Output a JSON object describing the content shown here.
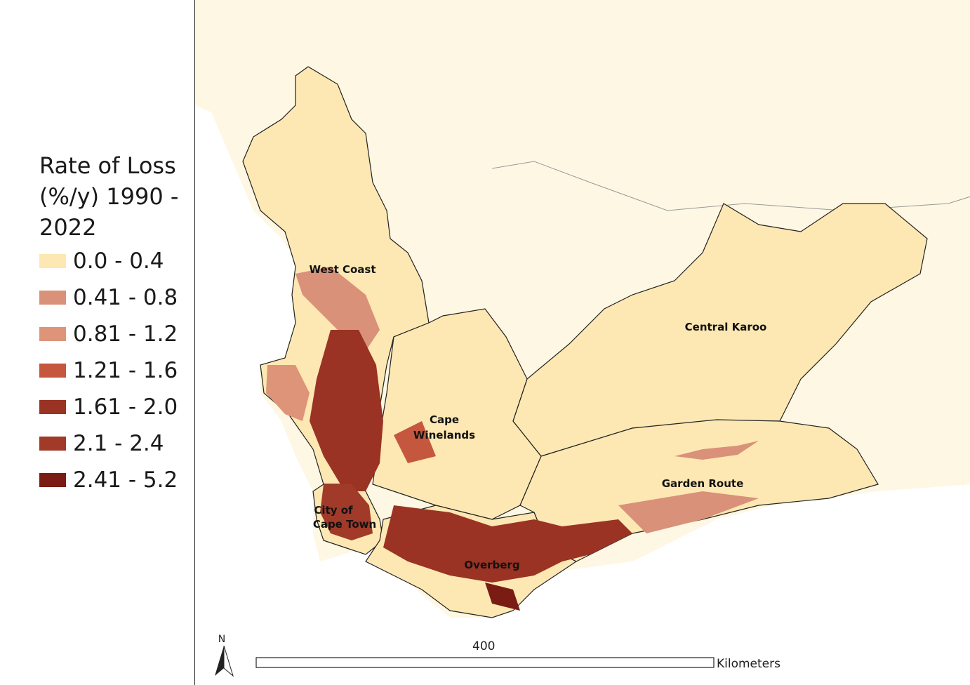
{
  "legend": {
    "title": "Rate of Loss\n(%/y) 1990 -\n2022",
    "items": [
      {
        "label": "0.0 - 0.4",
        "color": "#fde7b2"
      },
      {
        "label": "0.41 - 0.8",
        "color": "#d9917a"
      },
      {
        "label": "0.81 - 1.2",
        "color": "#dd9478"
      },
      {
        "label": "1.21 - 1.6",
        "color": "#c4573d"
      },
      {
        "label": "1.61 - 2.0",
        "color": "#9b3324"
      },
      {
        "label": "2.1 - 2.4",
        "color": "#a13a28"
      },
      {
        "label": "2.41 - 5.2",
        "color": "#7a1c14"
      }
    ]
  },
  "regions": [
    {
      "name": "West Coast"
    },
    {
      "name": "Central Karoo"
    },
    {
      "name": "Cape"
    },
    {
      "name": "Winelands"
    },
    {
      "name": "Garden Route"
    },
    {
      "name": "City of"
    },
    {
      "name": "Cape Town"
    },
    {
      "name": "Overberg"
    }
  ],
  "scale_bar": {
    "value": "400",
    "unit": "Kilometers"
  },
  "north_arrow": {
    "label": "N"
  },
  "colors": {
    "background": "#fdf7e4",
    "outline": "#222222"
  }
}
